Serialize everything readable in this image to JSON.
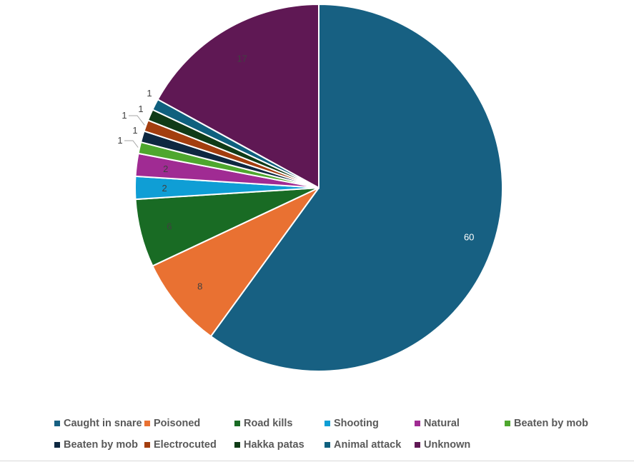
{
  "chart_data": {
    "type": "pie",
    "title": "",
    "categories": [
      "Caught in snare",
      "Poisoned",
      "Road kills",
      "Shooting",
      "Natural",
      "Beaten by mob",
      "Beaten by mob",
      "Electrocuted",
      "Hakka patas",
      "Animal attack",
      "Unknown"
    ],
    "values": [
      60,
      8,
      6,
      2,
      2,
      1,
      1,
      1,
      1,
      1,
      17
    ],
    "colors": [
      "#176082",
      "#E97132",
      "#196B24",
      "#0F9ED5",
      "#A02B93",
      "#4EA72E",
      "#0E2841",
      "#A33E0F",
      "#103B17",
      "#0F607E",
      "#5F1854"
    ],
    "data_labels": [
      "60",
      "8",
      "6",
      "2",
      "2",
      "1",
      "1",
      "1",
      "1",
      "1",
      "17"
    ],
    "label_colors": [
      "#ffffff",
      "#404040",
      "#404040",
      "#404040",
      "#404040",
      "#404040",
      "#404040",
      "#404040",
      "#404040",
      "#404040",
      "#404040"
    ],
    "legend_position": "bottom",
    "start_angle_deg": 0,
    "direction": "clockwise"
  }
}
